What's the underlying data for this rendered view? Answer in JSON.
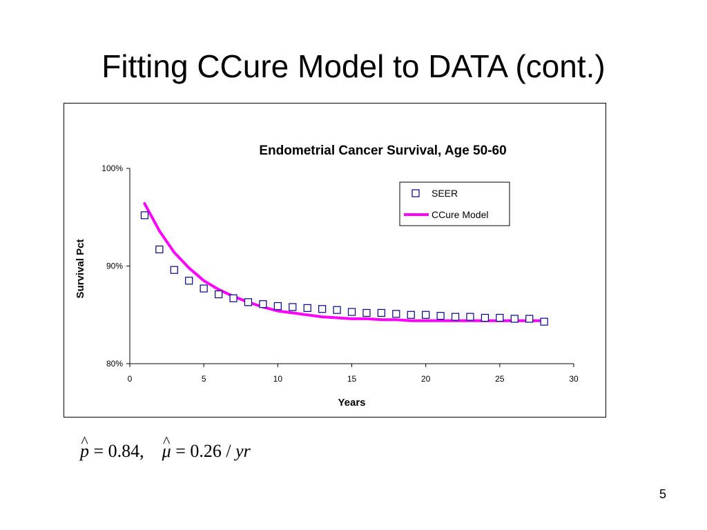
{
  "slide": {
    "title": "Fitting CCure Model to DATA (cont.)",
    "page_number": "5"
  },
  "formula": {
    "p_symbol": "p",
    "hat": "^",
    "p_value": " = 0.84,",
    "mu_symbol": "μ",
    "mu_value": " = 0.26 / ",
    "unit": "yr"
  },
  "chart_data": {
    "type": "scatter",
    "title": "Endometrial Cancer Survival, Age 50-60",
    "xlabel": "Years",
    "ylabel": "Survival Pct",
    "xlim": [
      0,
      30
    ],
    "ylim": [
      80,
      100
    ],
    "xticks": [
      0,
      5,
      10,
      15,
      20,
      25,
      30
    ],
    "yticks": [
      80,
      90,
      100
    ],
    "ytick_labels": [
      "80%",
      "90%",
      "100%"
    ],
    "grid": false,
    "legend_position": "top-right",
    "series": [
      {
        "name": "SEER",
        "kind": "markers",
        "marker": "square",
        "color": "#000080",
        "x": [
          1,
          2,
          3,
          4,
          5,
          6,
          7,
          8,
          9,
          10,
          11,
          12,
          13,
          14,
          15,
          16,
          17,
          18,
          19,
          20,
          21,
          22,
          23,
          24,
          25,
          26,
          27,
          28
        ],
        "y": [
          95.2,
          91.7,
          89.6,
          88.5,
          87.7,
          87.1,
          86.7,
          86.3,
          86.1,
          85.9,
          85.8,
          85.7,
          85.6,
          85.5,
          85.3,
          85.2,
          85.2,
          85.1,
          85.0,
          85.0,
          84.9,
          84.8,
          84.8,
          84.7,
          84.7,
          84.6,
          84.6,
          84.3
        ]
      },
      {
        "name": "CCure Model",
        "kind": "line",
        "color": "#FF00FF",
        "x": [
          1,
          2,
          3,
          4,
          5,
          6,
          7,
          8,
          9,
          10,
          11,
          12,
          13,
          14,
          15,
          16,
          17,
          18,
          19,
          20,
          21,
          22,
          23,
          24,
          25,
          26,
          27,
          28
        ],
        "y": [
          96.4,
          93.6,
          91.4,
          89.8,
          88.5,
          87.6,
          86.9,
          86.3,
          85.8,
          85.4,
          85.2,
          85.0,
          84.8,
          84.7,
          84.6,
          84.6,
          84.5,
          84.5,
          84.4,
          84.4,
          84.4,
          84.4,
          84.4,
          84.4,
          84.4,
          84.4,
          84.4,
          84.4
        ]
      }
    ]
  }
}
